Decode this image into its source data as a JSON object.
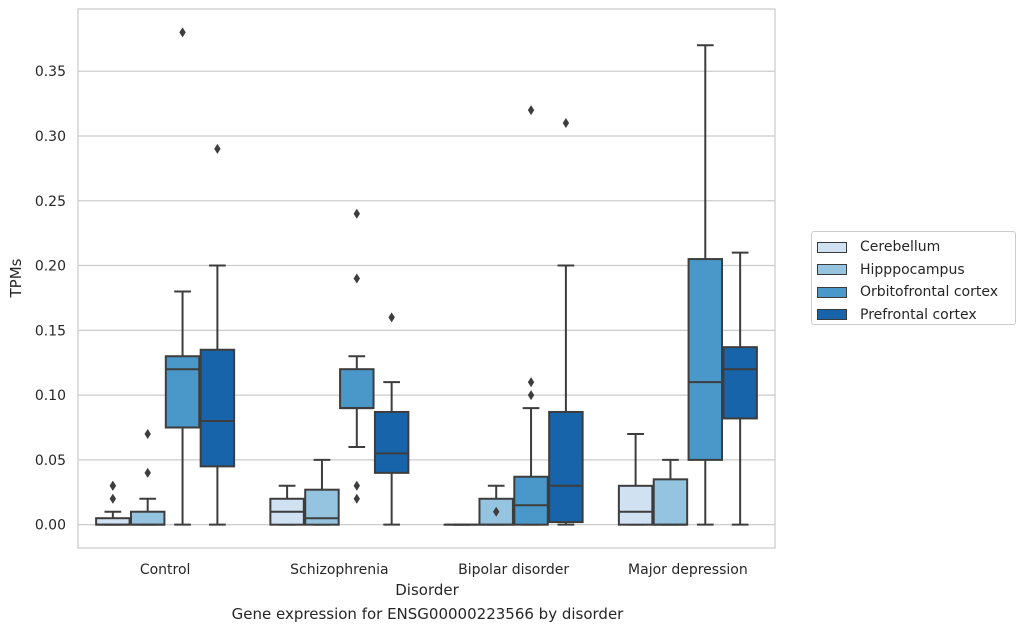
{
  "chart_data": {
    "type": "boxplot",
    "caption": "Gene expression for ENSG00000223566 by disorder",
    "xlabel": "Disorder",
    "ylabel": "TPMs",
    "ylim": [
      -0.018,
      0.398
    ],
    "yticks": [
      "0.00",
      "0.05",
      "0.10",
      "0.15",
      "0.20",
      "0.25",
      "0.30",
      "0.35"
    ],
    "ytick_values": [
      0,
      0.05,
      0.1,
      0.15,
      0.2,
      0.25,
      0.3,
      0.35
    ],
    "grid": "horizontal",
    "legend_position": "right",
    "categories": [
      "Control",
      "Schizophrenia",
      "Bipolar disorder",
      "Major depression"
    ],
    "series": [
      {
        "name": "Cerebellum",
        "color": "#d0e1f2",
        "boxes": [
          {
            "q1": 0.0,
            "median": 0.0,
            "q3": 0.005,
            "whislo": 0.0,
            "whishi": 0.01,
            "fliers": [
              0.02,
              0.03,
              0.03
            ]
          },
          {
            "q1": 0.0,
            "median": 0.01,
            "q3": 0.02,
            "whislo": 0.0,
            "whishi": 0.03,
            "fliers": []
          },
          {
            "q1": 0.0,
            "median": 0.0,
            "q3": 0.0,
            "whislo": 0.0,
            "whishi": 0.0,
            "fliers": []
          },
          {
            "q1": 0.0,
            "median": 0.01,
            "q3": 0.03,
            "whislo": 0.0,
            "whishi": 0.07,
            "fliers": []
          }
        ]
      },
      {
        "name": "Hipppocampus",
        "color": "#94c4df",
        "boxes": [
          {
            "q1": 0.0,
            "median": 0.0,
            "q3": 0.01,
            "whislo": 0.0,
            "whishi": 0.02,
            "fliers": [
              0.04,
              0.07
            ]
          },
          {
            "q1": 0.0,
            "median": 0.005,
            "q3": 0.027,
            "whislo": 0.0,
            "whishi": 0.05,
            "fliers": []
          },
          {
            "q1": 0.0,
            "median": 0.0,
            "q3": 0.02,
            "whislo": 0.0,
            "whishi": 0.03,
            "fliers": [
              0.01
            ]
          },
          {
            "q1": 0.0,
            "median": 0.0,
            "q3": 0.035,
            "whislo": 0.0,
            "whishi": 0.05,
            "fliers": []
          }
        ]
      },
      {
        "name": "Orbitofrontal cortex",
        "color": "#4a98c9",
        "boxes": [
          {
            "q1": 0.075,
            "median": 0.12,
            "q3": 0.13,
            "whislo": 0.0,
            "whishi": 0.18,
            "fliers": [
              0.38
            ]
          },
          {
            "q1": 0.09,
            "median": 0.09,
            "q3": 0.12,
            "whislo": 0.06,
            "whishi": 0.13,
            "fliers": [
              0.02,
              0.03,
              0.19,
              0.24
            ]
          },
          {
            "q1": 0.0,
            "median": 0.015,
            "q3": 0.037,
            "whislo": 0.0,
            "whishi": 0.09,
            "fliers": [
              0.1,
              0.11,
              0.32
            ]
          },
          {
            "q1": 0.05,
            "median": 0.11,
            "q3": 0.205,
            "whislo": 0.0,
            "whishi": 0.37,
            "fliers": []
          }
        ]
      },
      {
        "name": "Prefrontal cortex",
        "color": "#1764ab",
        "boxes": [
          {
            "q1": 0.045,
            "median": 0.08,
            "q3": 0.135,
            "whislo": 0.0,
            "whishi": 0.2,
            "fliers": [
              0.29
            ]
          },
          {
            "q1": 0.04,
            "median": 0.055,
            "q3": 0.087,
            "whislo": 0.0,
            "whishi": 0.11,
            "fliers": [
              0.16
            ]
          },
          {
            "q1": 0.002,
            "median": 0.03,
            "q3": 0.087,
            "whislo": 0.0,
            "whishi": 0.2,
            "fliers": [
              0.31
            ]
          },
          {
            "q1": 0.082,
            "median": 0.12,
            "q3": 0.137,
            "whislo": 0.0,
            "whishi": 0.21,
            "fliers": []
          }
        ]
      }
    ]
  }
}
